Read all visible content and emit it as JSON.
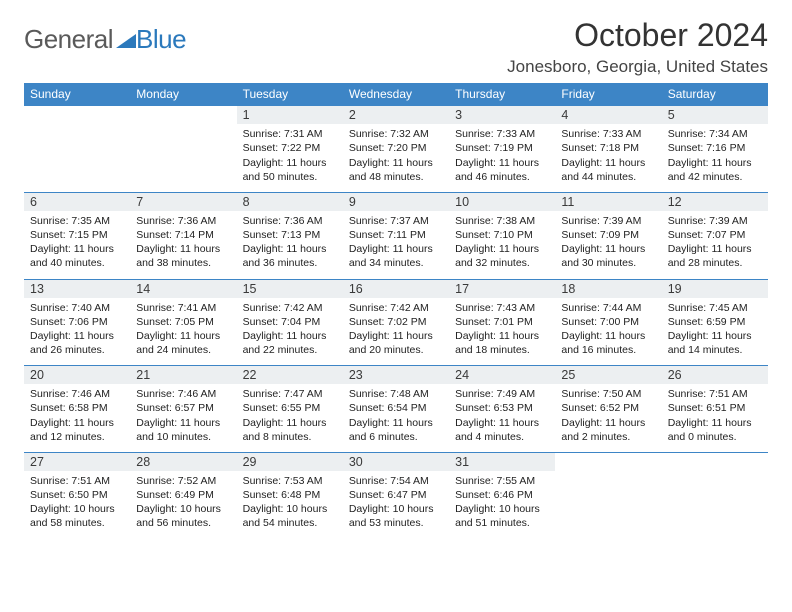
{
  "logo": {
    "text_gray": "General",
    "text_blue": "Blue"
  },
  "header": {
    "month_title": "October 2024",
    "location": "Jonesboro, Georgia, United States"
  },
  "colors": {
    "header_bar": "#3d85c6",
    "daynum_bg": "#eceff1",
    "row_divider": "#3d85c6",
    "text": "#222222",
    "logo_gray": "#5a5a5a",
    "logo_blue": "#2b79bc"
  },
  "weekdays": [
    "Sunday",
    "Monday",
    "Tuesday",
    "Wednesday",
    "Thursday",
    "Friday",
    "Saturday"
  ],
  "weeks": [
    {
      "nums": [
        "",
        "",
        "1",
        "2",
        "3",
        "4",
        "5"
      ],
      "cells": [
        null,
        null,
        {
          "sunrise": "Sunrise: 7:31 AM",
          "sunset": "Sunset: 7:22 PM",
          "day1": "Daylight: 11 hours",
          "day2": "and 50 minutes."
        },
        {
          "sunrise": "Sunrise: 7:32 AM",
          "sunset": "Sunset: 7:20 PM",
          "day1": "Daylight: 11 hours",
          "day2": "and 48 minutes."
        },
        {
          "sunrise": "Sunrise: 7:33 AM",
          "sunset": "Sunset: 7:19 PM",
          "day1": "Daylight: 11 hours",
          "day2": "and 46 minutes."
        },
        {
          "sunrise": "Sunrise: 7:33 AM",
          "sunset": "Sunset: 7:18 PM",
          "day1": "Daylight: 11 hours",
          "day2": "and 44 minutes."
        },
        {
          "sunrise": "Sunrise: 7:34 AM",
          "sunset": "Sunset: 7:16 PM",
          "day1": "Daylight: 11 hours",
          "day2": "and 42 minutes."
        }
      ]
    },
    {
      "nums": [
        "6",
        "7",
        "8",
        "9",
        "10",
        "11",
        "12"
      ],
      "cells": [
        {
          "sunrise": "Sunrise: 7:35 AM",
          "sunset": "Sunset: 7:15 PM",
          "day1": "Daylight: 11 hours",
          "day2": "and 40 minutes."
        },
        {
          "sunrise": "Sunrise: 7:36 AM",
          "sunset": "Sunset: 7:14 PM",
          "day1": "Daylight: 11 hours",
          "day2": "and 38 minutes."
        },
        {
          "sunrise": "Sunrise: 7:36 AM",
          "sunset": "Sunset: 7:13 PM",
          "day1": "Daylight: 11 hours",
          "day2": "and 36 minutes."
        },
        {
          "sunrise": "Sunrise: 7:37 AM",
          "sunset": "Sunset: 7:11 PM",
          "day1": "Daylight: 11 hours",
          "day2": "and 34 minutes."
        },
        {
          "sunrise": "Sunrise: 7:38 AM",
          "sunset": "Sunset: 7:10 PM",
          "day1": "Daylight: 11 hours",
          "day2": "and 32 minutes."
        },
        {
          "sunrise": "Sunrise: 7:39 AM",
          "sunset": "Sunset: 7:09 PM",
          "day1": "Daylight: 11 hours",
          "day2": "and 30 minutes."
        },
        {
          "sunrise": "Sunrise: 7:39 AM",
          "sunset": "Sunset: 7:07 PM",
          "day1": "Daylight: 11 hours",
          "day2": "and 28 minutes."
        }
      ]
    },
    {
      "nums": [
        "13",
        "14",
        "15",
        "16",
        "17",
        "18",
        "19"
      ],
      "cells": [
        {
          "sunrise": "Sunrise: 7:40 AM",
          "sunset": "Sunset: 7:06 PM",
          "day1": "Daylight: 11 hours",
          "day2": "and 26 minutes."
        },
        {
          "sunrise": "Sunrise: 7:41 AM",
          "sunset": "Sunset: 7:05 PM",
          "day1": "Daylight: 11 hours",
          "day2": "and 24 minutes."
        },
        {
          "sunrise": "Sunrise: 7:42 AM",
          "sunset": "Sunset: 7:04 PM",
          "day1": "Daylight: 11 hours",
          "day2": "and 22 minutes."
        },
        {
          "sunrise": "Sunrise: 7:42 AM",
          "sunset": "Sunset: 7:02 PM",
          "day1": "Daylight: 11 hours",
          "day2": "and 20 minutes."
        },
        {
          "sunrise": "Sunrise: 7:43 AM",
          "sunset": "Sunset: 7:01 PM",
          "day1": "Daylight: 11 hours",
          "day2": "and 18 minutes."
        },
        {
          "sunrise": "Sunrise: 7:44 AM",
          "sunset": "Sunset: 7:00 PM",
          "day1": "Daylight: 11 hours",
          "day2": "and 16 minutes."
        },
        {
          "sunrise": "Sunrise: 7:45 AM",
          "sunset": "Sunset: 6:59 PM",
          "day1": "Daylight: 11 hours",
          "day2": "and 14 minutes."
        }
      ]
    },
    {
      "nums": [
        "20",
        "21",
        "22",
        "23",
        "24",
        "25",
        "26"
      ],
      "cells": [
        {
          "sunrise": "Sunrise: 7:46 AM",
          "sunset": "Sunset: 6:58 PM",
          "day1": "Daylight: 11 hours",
          "day2": "and 12 minutes."
        },
        {
          "sunrise": "Sunrise: 7:46 AM",
          "sunset": "Sunset: 6:57 PM",
          "day1": "Daylight: 11 hours",
          "day2": "and 10 minutes."
        },
        {
          "sunrise": "Sunrise: 7:47 AM",
          "sunset": "Sunset: 6:55 PM",
          "day1": "Daylight: 11 hours",
          "day2": "and 8 minutes."
        },
        {
          "sunrise": "Sunrise: 7:48 AM",
          "sunset": "Sunset: 6:54 PM",
          "day1": "Daylight: 11 hours",
          "day2": "and 6 minutes."
        },
        {
          "sunrise": "Sunrise: 7:49 AM",
          "sunset": "Sunset: 6:53 PM",
          "day1": "Daylight: 11 hours",
          "day2": "and 4 minutes."
        },
        {
          "sunrise": "Sunrise: 7:50 AM",
          "sunset": "Sunset: 6:52 PM",
          "day1": "Daylight: 11 hours",
          "day2": "and 2 minutes."
        },
        {
          "sunrise": "Sunrise: 7:51 AM",
          "sunset": "Sunset: 6:51 PM",
          "day1": "Daylight: 11 hours",
          "day2": "and 0 minutes."
        }
      ]
    },
    {
      "nums": [
        "27",
        "28",
        "29",
        "30",
        "31",
        "",
        ""
      ],
      "cells": [
        {
          "sunrise": "Sunrise: 7:51 AM",
          "sunset": "Sunset: 6:50 PM",
          "day1": "Daylight: 10 hours",
          "day2": "and 58 minutes."
        },
        {
          "sunrise": "Sunrise: 7:52 AM",
          "sunset": "Sunset: 6:49 PM",
          "day1": "Daylight: 10 hours",
          "day2": "and 56 minutes."
        },
        {
          "sunrise": "Sunrise: 7:53 AM",
          "sunset": "Sunset: 6:48 PM",
          "day1": "Daylight: 10 hours",
          "day2": "and 54 minutes."
        },
        {
          "sunrise": "Sunrise: 7:54 AM",
          "sunset": "Sunset: 6:47 PM",
          "day1": "Daylight: 10 hours",
          "day2": "and 53 minutes."
        },
        {
          "sunrise": "Sunrise: 7:55 AM",
          "sunset": "Sunset: 6:46 PM",
          "day1": "Daylight: 10 hours",
          "day2": "and 51 minutes."
        },
        null,
        null
      ]
    }
  ]
}
